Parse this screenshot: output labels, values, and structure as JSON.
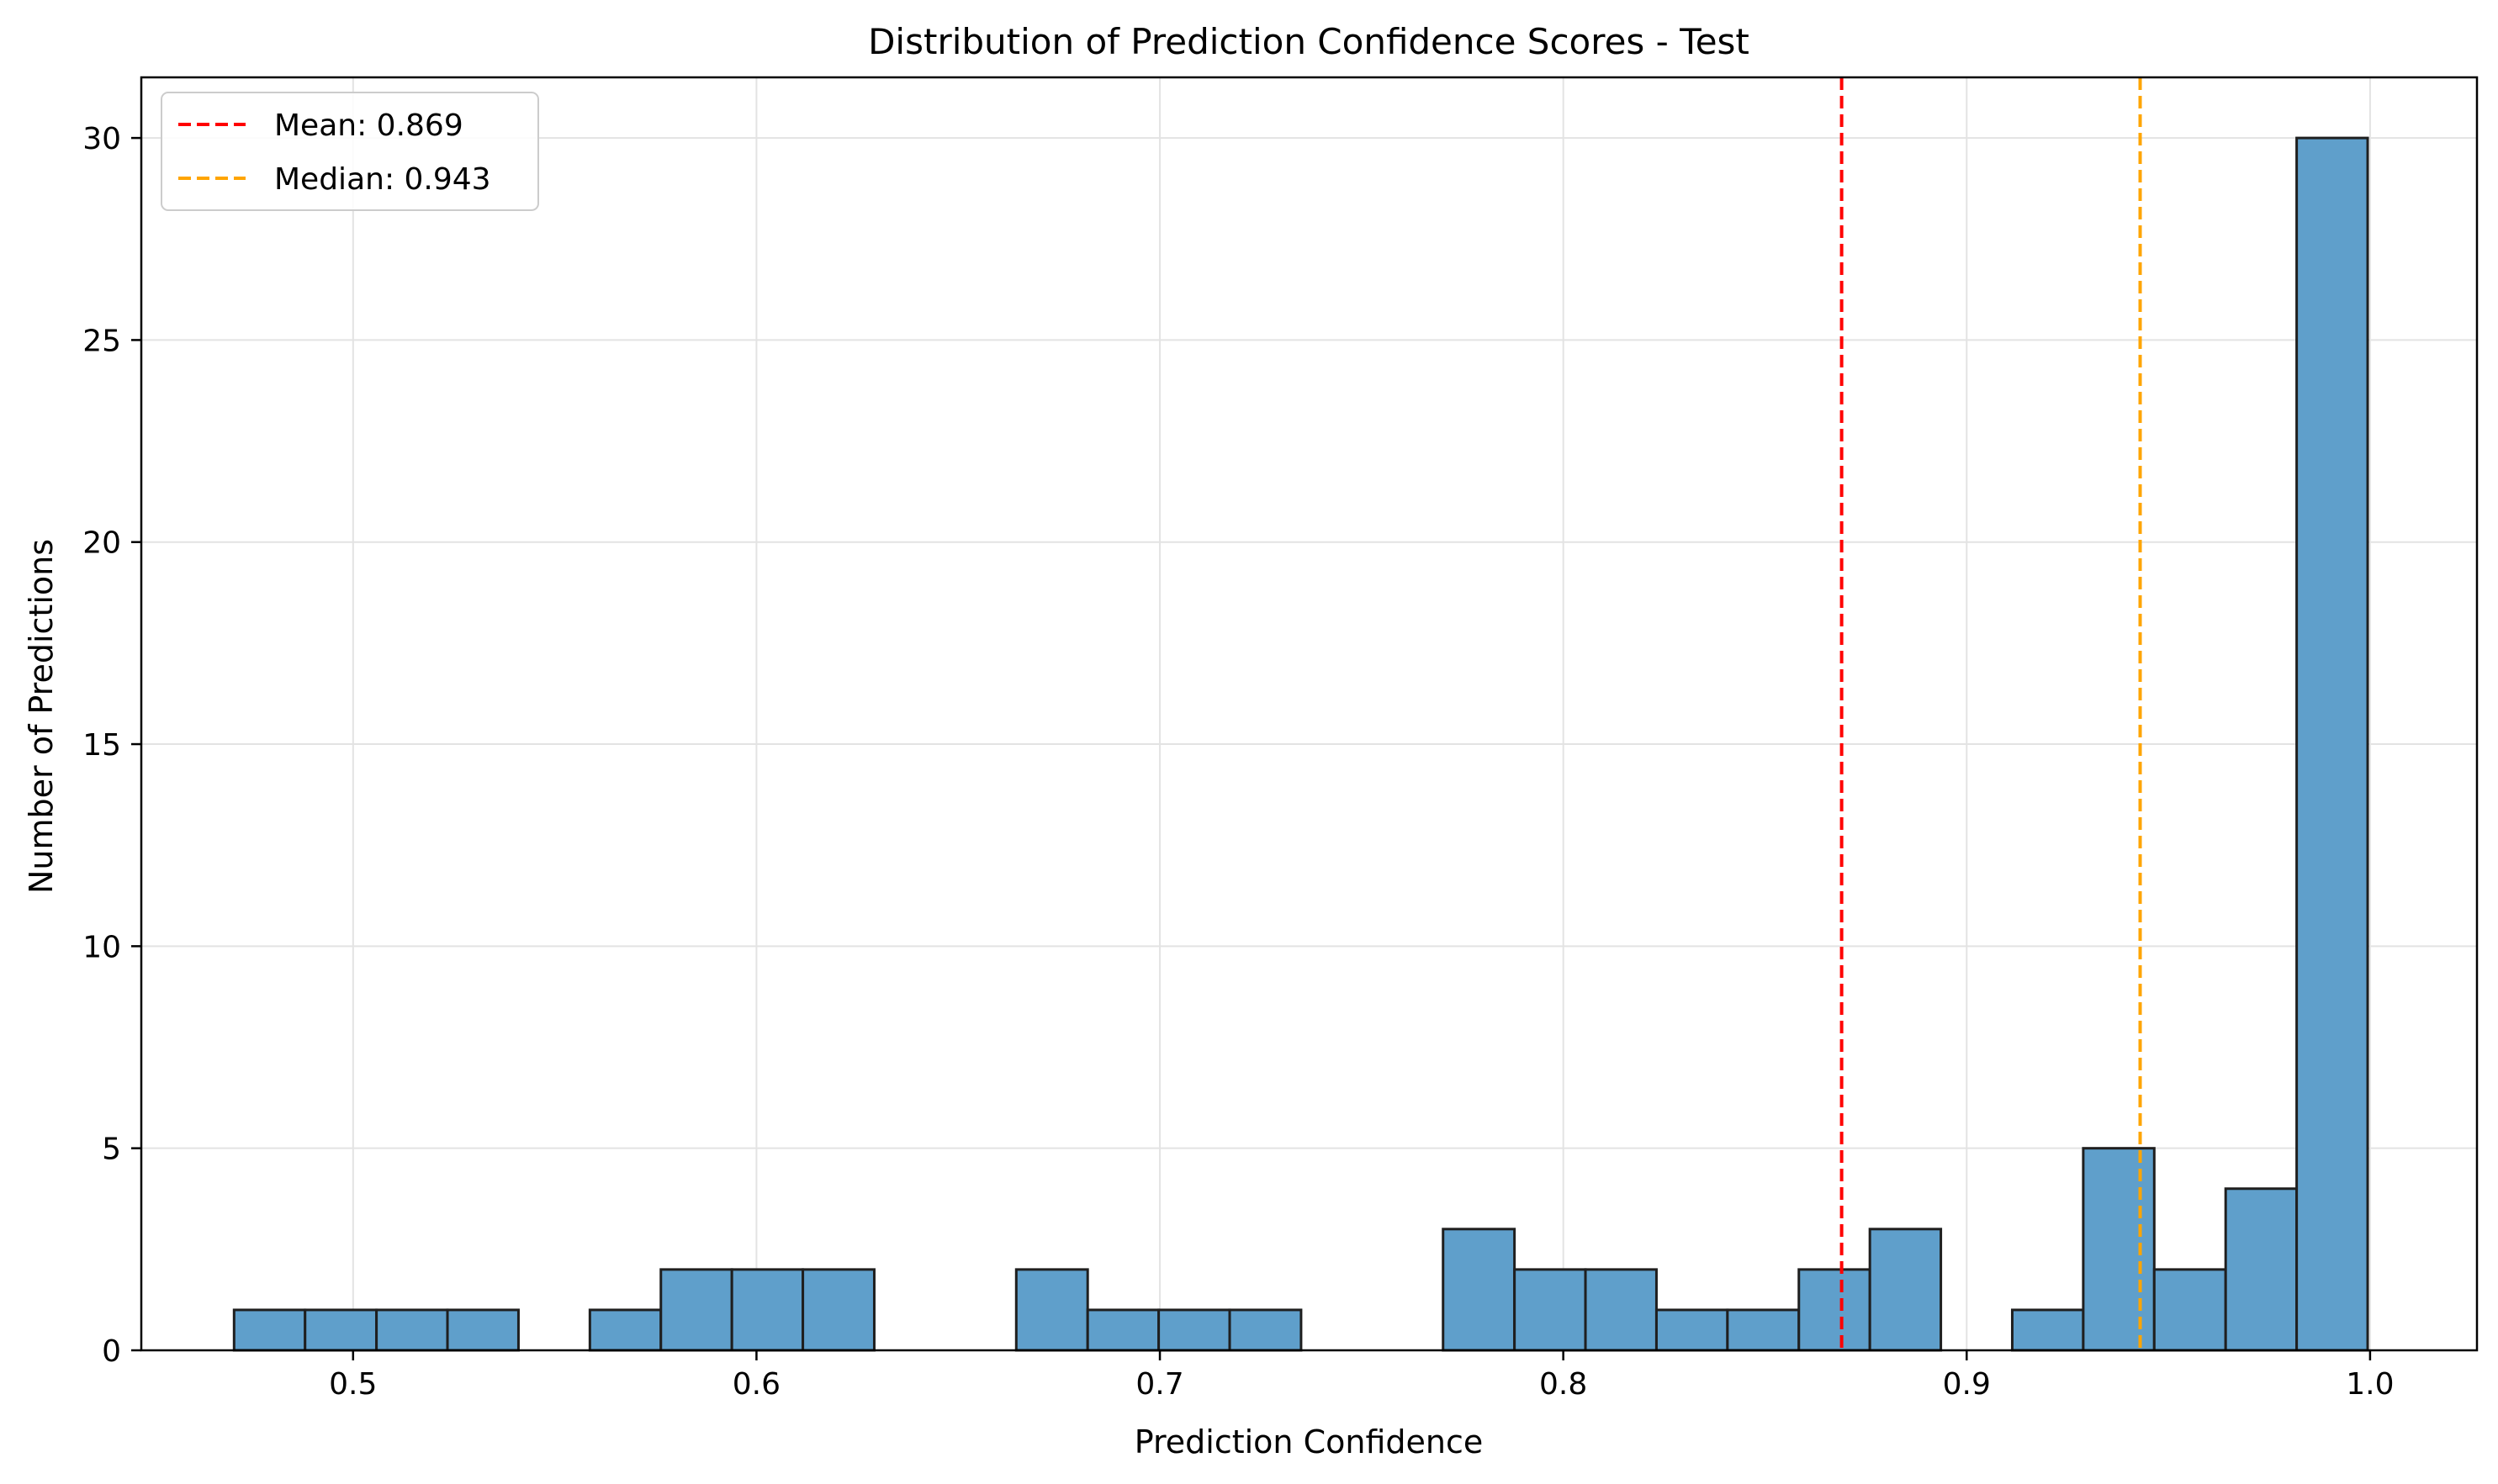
{
  "chart_data": {
    "type": "bar",
    "title": "Distribution of Prediction Confidence Scores - Test",
    "xlabel": "Prediction Confidence",
    "ylabel": "Number of Predictions",
    "xlim": [
      0.4475,
      1.0265
    ],
    "ylim": [
      0,
      31.5
    ],
    "xticks": [
      0.5,
      0.6,
      0.7,
      0.8,
      0.9,
      1.0
    ],
    "xtick_labels": [
      "0.5",
      "0.6",
      "0.7",
      "0.8",
      "0.9",
      "1.0"
    ],
    "yticks": [
      0,
      5,
      10,
      15,
      20,
      25,
      30
    ],
    "ytick_labels": [
      "0",
      "5",
      "10",
      "15",
      "20",
      "25",
      "30"
    ],
    "grid": true,
    "legend_position": "top-left",
    "bar_color": "#5f9fcb",
    "bar_edge_color": "#1f1f1f",
    "bins": [
      {
        "x0": 0.4705,
        "x1": 0.4881,
        "count": 1
      },
      {
        "x0": 0.4881,
        "x1": 0.5058,
        "count": 1
      },
      {
        "x0": 0.5058,
        "x1": 0.5234,
        "count": 1
      },
      {
        "x0": 0.5234,
        "x1": 0.541,
        "count": 1
      },
      {
        "x0": 0.541,
        "x1": 0.5587,
        "count": 0
      },
      {
        "x0": 0.5587,
        "x1": 0.5763,
        "count": 1
      },
      {
        "x0": 0.5763,
        "x1": 0.5939,
        "count": 2
      },
      {
        "x0": 0.5939,
        "x1": 0.6115,
        "count": 2
      },
      {
        "x0": 0.6115,
        "x1": 0.6292,
        "count": 2
      },
      {
        "x0": 0.6292,
        "x1": 0.6468,
        "count": 0
      },
      {
        "x0": 0.6468,
        "x1": 0.6644,
        "count": 0
      },
      {
        "x0": 0.6644,
        "x1": 0.6821,
        "count": 2
      },
      {
        "x0": 0.6821,
        "x1": 0.6997,
        "count": 1
      },
      {
        "x0": 0.6997,
        "x1": 0.7173,
        "count": 1
      },
      {
        "x0": 0.7173,
        "x1": 0.735,
        "count": 1
      },
      {
        "x0": 0.735,
        "x1": 0.7526,
        "count": 0
      },
      {
        "x0": 0.7526,
        "x1": 0.7702,
        "count": 0
      },
      {
        "x0": 0.7702,
        "x1": 0.7879,
        "count": 3
      },
      {
        "x0": 0.7879,
        "x1": 0.8055,
        "count": 2
      },
      {
        "x0": 0.8055,
        "x1": 0.8231,
        "count": 2
      },
      {
        "x0": 0.8231,
        "x1": 0.8407,
        "count": 1
      },
      {
        "x0": 0.8407,
        "x1": 0.8584,
        "count": 1
      },
      {
        "x0": 0.8584,
        "x1": 0.876,
        "count": 2
      },
      {
        "x0": 0.876,
        "x1": 0.8936,
        "count": 3
      },
      {
        "x0": 0.8936,
        "x1": 0.9113,
        "count": 0
      },
      {
        "x0": 0.9113,
        "x1": 0.9289,
        "count": 1
      },
      {
        "x0": 0.9289,
        "x1": 0.9465,
        "count": 5
      },
      {
        "x0": 0.9465,
        "x1": 0.9642,
        "count": 2
      },
      {
        "x0": 0.9642,
        "x1": 0.9818,
        "count": 4
      },
      {
        "x0": 0.9818,
        "x1": 0.9994,
        "count": 30
      }
    ],
    "vlines": [
      {
        "label": "Mean: 0.869",
        "x": 0.869,
        "color": "#ff0000"
      },
      {
        "label": "Median: 0.943",
        "x": 0.943,
        "color": "#ffa500"
      }
    ]
  }
}
